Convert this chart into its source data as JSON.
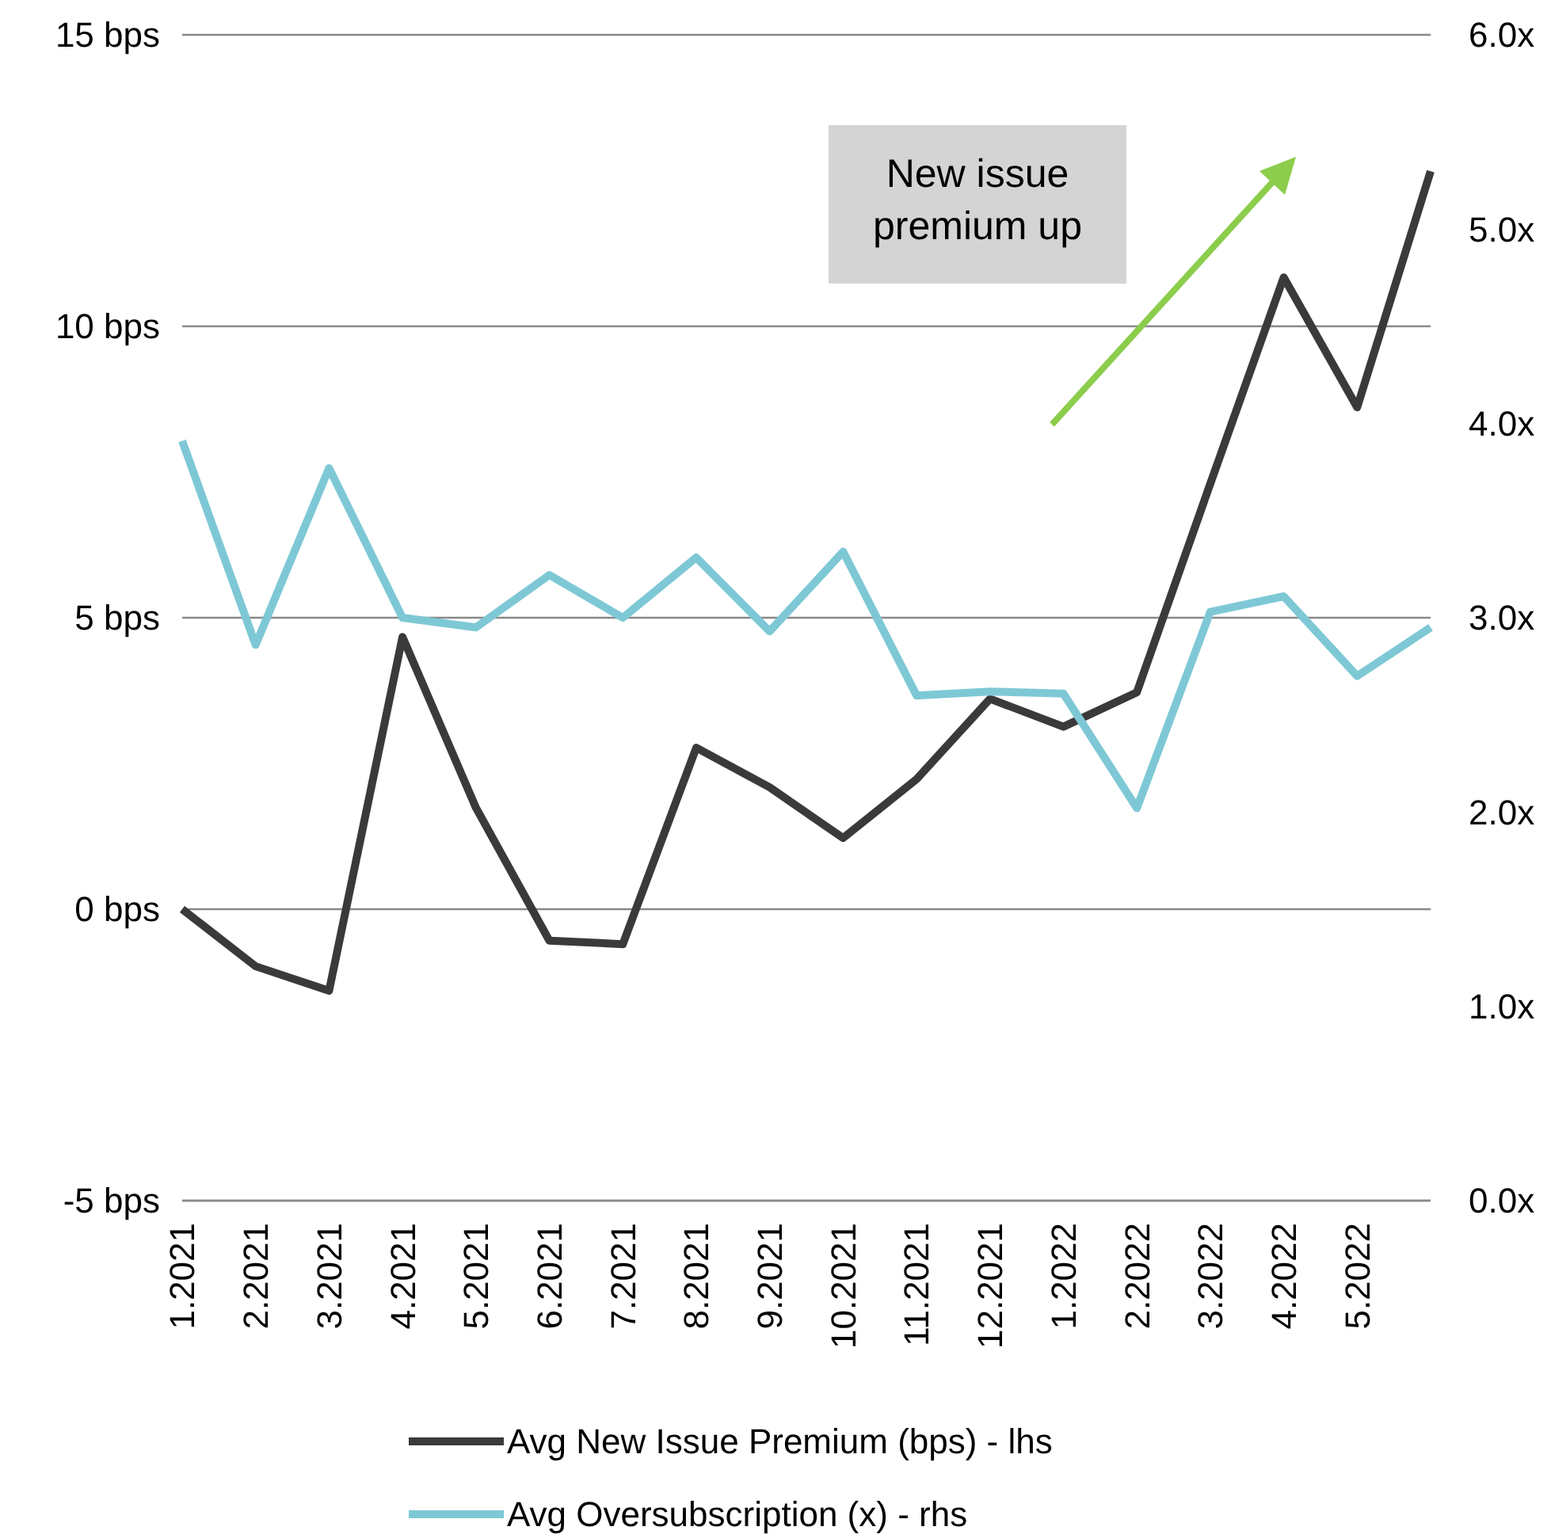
{
  "chart_data": {
    "type": "line",
    "categories": [
      "1.2021",
      "2.2021",
      "3.2021",
      "4.2021",
      "5.2021",
      "6.2021",
      "7.2021",
      "8.2021",
      "9.2021",
      "10.2021",
      "11.2021",
      "12.2021",
      "1.2022",
      "2.2022",
      "3.2022",
      "4.2022",
      "5.2022",
      null
    ],
    "series": [
      {
        "name": "Avg New Issue Premium (bps) - lhs",
        "color": "#3a3a3a",
        "values": [
          0,
          -0.98,
          -1.4,
          4.67,
          1.74,
          -0.54,
          -0.6,
          2.77,
          2.09,
          1.22,
          2.23,
          3.61,
          3.13,
          3.72,
          7.3,
          10.84,
          8.61,
          12.66
        ]
      },
      {
        "name": "Avg Oversubscription (x) - rhs",
        "color": "#7ec8d6",
        "axis": "y2",
        "values": [
          3.91,
          2.86,
          3.77,
          3.0,
          2.95,
          3.22,
          3.0,
          3.31,
          2.93,
          3.34,
          2.6,
          2.62,
          2.61,
          2.02,
          3.03,
          3.11,
          2.7,
          2.95
        ]
      }
    ],
    "ylim": [
      -5,
      15
    ],
    "yticks": [
      {
        "value": -5,
        "label": "-5 bps"
      },
      {
        "value": 0,
        "label": "0 bps"
      },
      {
        "value": 5,
        "label": "5 bps"
      },
      {
        "value": 10,
        "label": "10 bps"
      },
      {
        "value": 15,
        "label": "15 bps"
      }
    ],
    "y2lim": [
      0,
      6
    ],
    "y2ticks": [
      {
        "value": 0,
        "label": "0.0x"
      },
      {
        "value": 1,
        "label": "1.0x"
      },
      {
        "value": 2,
        "label": "2.0x"
      },
      {
        "value": 3,
        "label": "3.0x"
      },
      {
        "value": 4,
        "label": "4.0x"
      },
      {
        "value": 5,
        "label": "5.0x"
      },
      {
        "value": 6,
        "label": "6.0x"
      }
    ],
    "grid": "y",
    "legend": "bottom",
    "line_style": "solid",
    "marker": "none",
    "annotations": [
      "New issue premium up"
    ]
  }
}
